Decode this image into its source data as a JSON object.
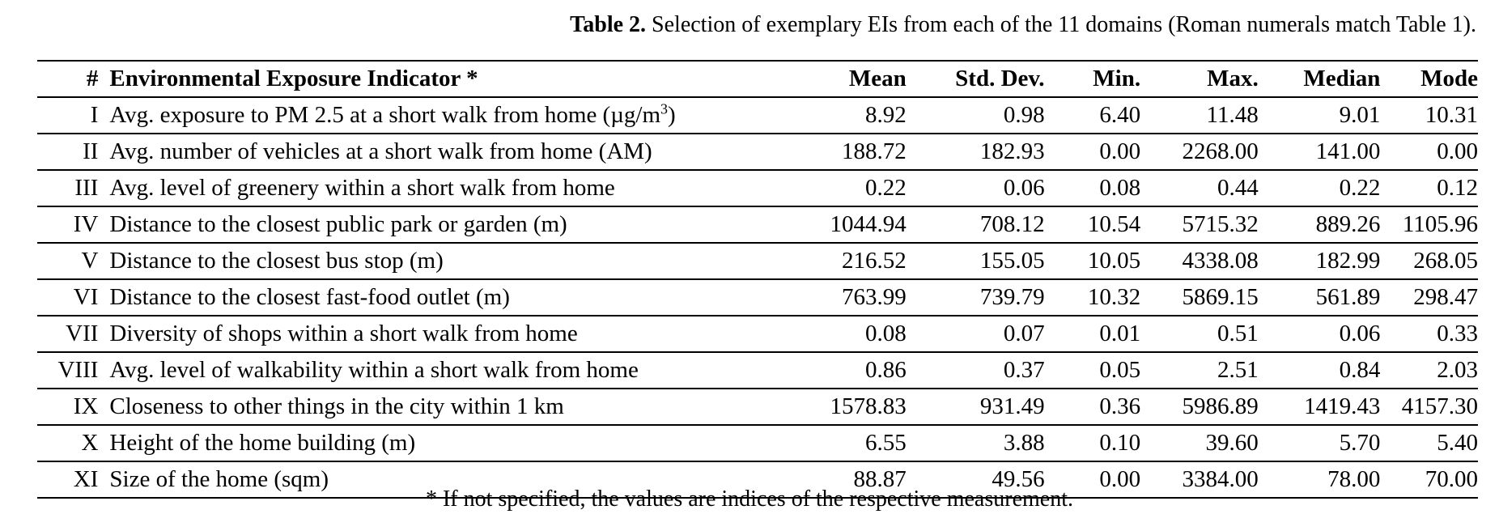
{
  "caption": {
    "label": "Table 2.",
    "text": " Selection of exemplary EIs from each of the 11 domains (Roman numerals match Table 1)."
  },
  "table": {
    "headers": [
      "#",
      "Environmental Exposure Indicator *",
      "Mean",
      "Std. Dev.",
      "Min.",
      "Max.",
      "Median",
      "Mode"
    ],
    "rows": [
      {
        "num": "I",
        "indicator": "Avg. exposure to PM 2.5 at a short walk from home (µg/m",
        "sup": "3",
        "suffix": ")",
        "mean": "8.92",
        "std": "0.98",
        "min": "6.40",
        "max": "11.48",
        "median": "9.01",
        "mode": "10.31"
      },
      {
        "num": "II",
        "indicator": "Avg. number of vehicles at a short walk from home (AM)",
        "sup": "",
        "suffix": "",
        "mean": "188.72",
        "std": "182.93",
        "min": "0.00",
        "max": "2268.00",
        "median": "141.00",
        "mode": "0.00"
      },
      {
        "num": "III",
        "indicator": "Avg. level of greenery within a short walk from home",
        "sup": "",
        "suffix": "",
        "mean": "0.22",
        "std": "0.06",
        "min": "0.08",
        "max": "0.44",
        "median": "0.22",
        "mode": "0.12"
      },
      {
        "num": "IV",
        "indicator": "Distance to the closest public park or garden (m)",
        "sup": "",
        "suffix": "",
        "mean": "1044.94",
        "std": "708.12",
        "min": "10.54",
        "max": "5715.32",
        "median": "889.26",
        "mode": "1105.96"
      },
      {
        "num": "V",
        "indicator": "Distance to the closest bus stop (m)",
        "sup": "",
        "suffix": "",
        "mean": "216.52",
        "std": "155.05",
        "min": "10.05",
        "max": "4338.08",
        "median": "182.99",
        "mode": "268.05"
      },
      {
        "num": "VI",
        "indicator": "Distance to the closest fast-food outlet (m)",
        "sup": "",
        "suffix": "",
        "mean": "763.99",
        "std": "739.79",
        "min": "10.32",
        "max": "5869.15",
        "median": "561.89",
        "mode": "298.47"
      },
      {
        "num": "VII",
        "indicator": "Diversity of shops within a short walk from home",
        "sup": "",
        "suffix": "",
        "mean": "0.08",
        "std": "0.07",
        "min": "0.01",
        "max": "0.51",
        "median": "0.06",
        "mode": "0.33"
      },
      {
        "num": "VIII",
        "indicator": "Avg. level of walkability within a short walk from home",
        "sup": "",
        "suffix": "",
        "mean": "0.86",
        "std": "0.37",
        "min": "0.05",
        "max": "2.51",
        "median": "0.84",
        "mode": "2.03"
      },
      {
        "num": "IX",
        "indicator": "Closeness to other things in the city within 1 km",
        "sup": "",
        "suffix": "",
        "mean": "1578.83",
        "std": "931.49",
        "min": "0.36",
        "max": "5986.89",
        "median": "1419.43",
        "mode": "4157.30"
      },
      {
        "num": "X",
        "indicator": "Height of the home building (m)",
        "sup": "",
        "suffix": "",
        "mean": "6.55",
        "std": "3.88",
        "min": "0.10",
        "max": "39.60",
        "median": "5.70",
        "mode": "5.40"
      },
      {
        "num": "XI",
        "indicator": "Size of the home (sqm)",
        "sup": "",
        "suffix": "",
        "mean": "88.87",
        "std": "49.56",
        "min": "0.00",
        "max": "3384.00",
        "median": "78.00",
        "mode": "70.00"
      }
    ]
  },
  "footnote": "* If not specified, the values are indices of the respective measurement."
}
